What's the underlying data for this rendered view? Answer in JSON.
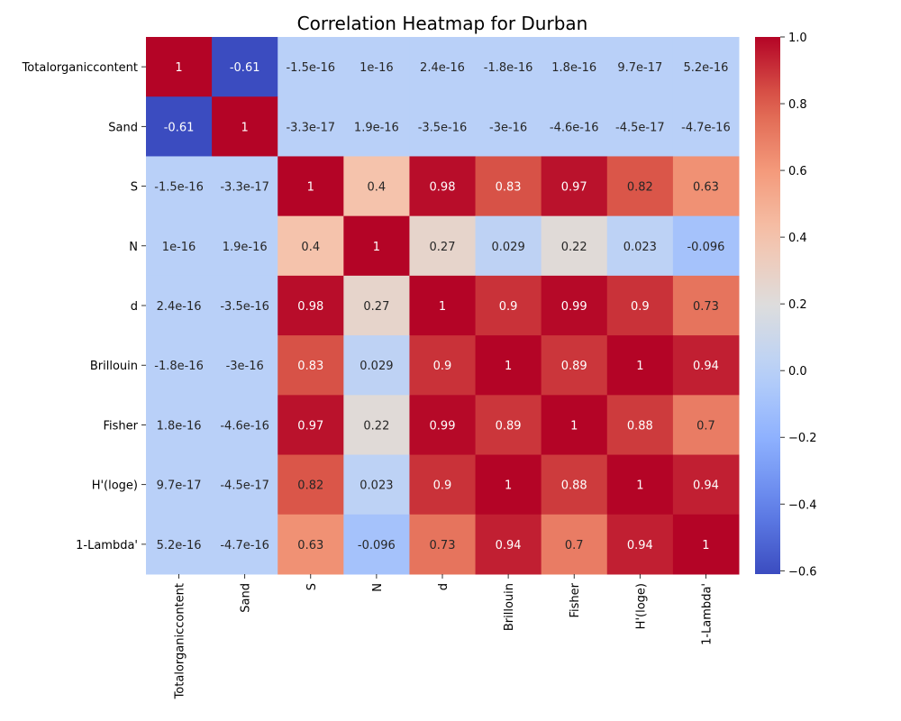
{
  "chart_data": {
    "type": "heatmap",
    "title": "Correlation Heatmap for Durban",
    "xlabel": "",
    "ylabel": "",
    "labels": [
      "Totalorganiccontent",
      "Sand",
      "S",
      "N",
      "d",
      "Brillouin",
      "Fisher",
      "H'(loge)",
      "1-Lambda'"
    ],
    "matrix": [
      [
        1,
        -0.61,
        -1.5e-16,
        1e-16,
        2.4e-16,
        -1.8e-16,
        1.8e-16,
        9.7e-17,
        5.2e-16
      ],
      [
        -0.61,
        1,
        -3.3e-17,
        1.9e-16,
        -3.5e-16,
        -3e-16,
        -4.6e-16,
        -4.5e-17,
        -4.7e-16
      ],
      [
        -1.5e-16,
        -3.3e-17,
        1,
        0.4,
        0.98,
        0.83,
        0.97,
        0.82,
        0.63
      ],
      [
        1e-16,
        1.9e-16,
        0.4,
        1,
        0.27,
        0.029,
        0.22,
        0.023,
        -0.096
      ],
      [
        2.4e-16,
        -3.5e-16,
        0.98,
        0.27,
        1,
        0.9,
        0.99,
        0.9,
        0.73
      ],
      [
        -1.8e-16,
        -3e-16,
        0.83,
        0.029,
        0.9,
        1,
        0.89,
        1,
        0.94
      ],
      [
        1.8e-16,
        -4.6e-16,
        0.97,
        0.22,
        0.99,
        0.89,
        1,
        0.88,
        0.7
      ],
      [
        9.7e-17,
        -4.5e-17,
        0.82,
        0.023,
        0.9,
        1,
        0.88,
        1,
        0.94
      ],
      [
        5.2e-16,
        -4.7e-16,
        0.63,
        -0.096,
        0.73,
        0.94,
        0.7,
        0.94,
        1
      ]
    ],
    "annotations": [
      [
        "1",
        "-0.61",
        "-1.5e-16",
        "1e-16",
        "2.4e-16",
        "-1.8e-16",
        "1.8e-16",
        "9.7e-17",
        "5.2e-16"
      ],
      [
        "-0.61",
        "1",
        "-3.3e-17",
        "1.9e-16",
        "-3.5e-16",
        "-3e-16",
        "-4.6e-16",
        "-4.5e-17",
        "-4.7e-16"
      ],
      [
        "-1.5e-16",
        "-3.3e-17",
        "1",
        "0.4",
        "0.98",
        "0.83",
        "0.97",
        "0.82",
        "0.63"
      ],
      [
        "1e-16",
        "1.9e-16",
        "0.4",
        "1",
        "0.27",
        "0.029",
        "0.22",
        "0.023",
        "-0.096"
      ],
      [
        "2.4e-16",
        "-3.5e-16",
        "0.98",
        "0.27",
        "1",
        "0.9",
        "0.99",
        "0.9",
        "0.73"
      ],
      [
        "-1.8e-16",
        "-3e-16",
        "0.83",
        "0.029",
        "0.9",
        "1",
        "0.89",
        "1",
        "0.94"
      ],
      [
        "1.8e-16",
        "-4.6e-16",
        "0.97",
        "0.22",
        "0.99",
        "0.89",
        "1",
        "0.88",
        "0.7"
      ],
      [
        "9.7e-17",
        "-4.5e-17",
        "0.82",
        "0.023",
        "0.9",
        "1",
        "0.88",
        "1",
        "0.94"
      ],
      [
        "5.2e-16",
        "-4.7e-16",
        "0.63",
        "-0.096",
        "0.73",
        "0.94",
        "0.7",
        "0.94",
        "1"
      ]
    ],
    "colormap": "coolwarm",
    "vmin": -0.61,
    "vmax": 1,
    "colorbar": {
      "ticks": [
        -0.6,
        -0.4,
        -0.2,
        0.0,
        0.2,
        0.4,
        0.6,
        0.8,
        1.0
      ],
      "tick_labels": [
        "−0.6",
        "−0.4",
        "−0.2",
        "0.0",
        "0.2",
        "0.4",
        "0.6",
        "0.8",
        "1.0"
      ]
    },
    "legend": "right",
    "grid": false
  }
}
